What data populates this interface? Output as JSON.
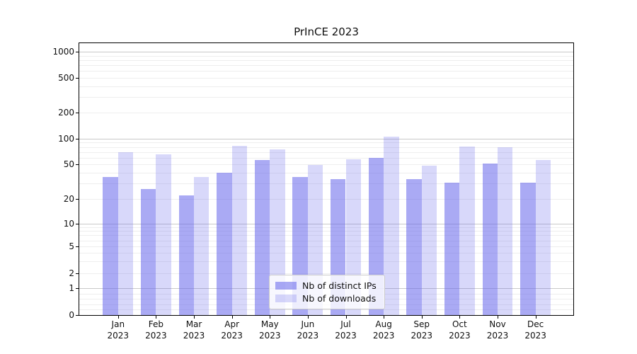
{
  "chart_data": {
    "type": "bar",
    "title": "PrInCE 2023",
    "categories": [
      "Jan 2023",
      "Feb 2023",
      "Mar 2023",
      "Apr 2023",
      "May 2023",
      "Jun 2023",
      "Jul 2023",
      "Aug 2023",
      "Sep 2023",
      "Oct 2023",
      "Nov 2023",
      "Dec 2023"
    ],
    "month_line1": [
      "Jan",
      "Feb",
      "Mar",
      "Apr",
      "May",
      "Jun",
      "Jul",
      "Aug",
      "Sep",
      "Oct",
      "Nov",
      "Dec"
    ],
    "month_line2": "2023",
    "series": [
      {
        "name": "Nb of distinct IPs",
        "color": "rgba(100,100,235,0.55)",
        "values": [
          36,
          26,
          22,
          40,
          56,
          36,
          34,
          59,
          34,
          31,
          51,
          31
        ]
      },
      {
        "name": "Nb of downloads",
        "color": "rgba(100,100,235,0.25)",
        "values": [
          70,
          65,
          36,
          82,
          75,
          49,
          57,
          106,
          48,
          81,
          80,
          56
        ]
      }
    ],
    "y_ticks": [
      0,
      1,
      2,
      5,
      10,
      20,
      50,
      100,
      200,
      500,
      1000
    ],
    "y_scale": "symlog",
    "ylim": [
      0,
      1250
    ],
    "grid": "horizontal major + log minor",
    "legend": {
      "entries": [
        "Nb of distinct IPs",
        "Nb of downloads"
      ],
      "location": "lower center"
    }
  }
}
